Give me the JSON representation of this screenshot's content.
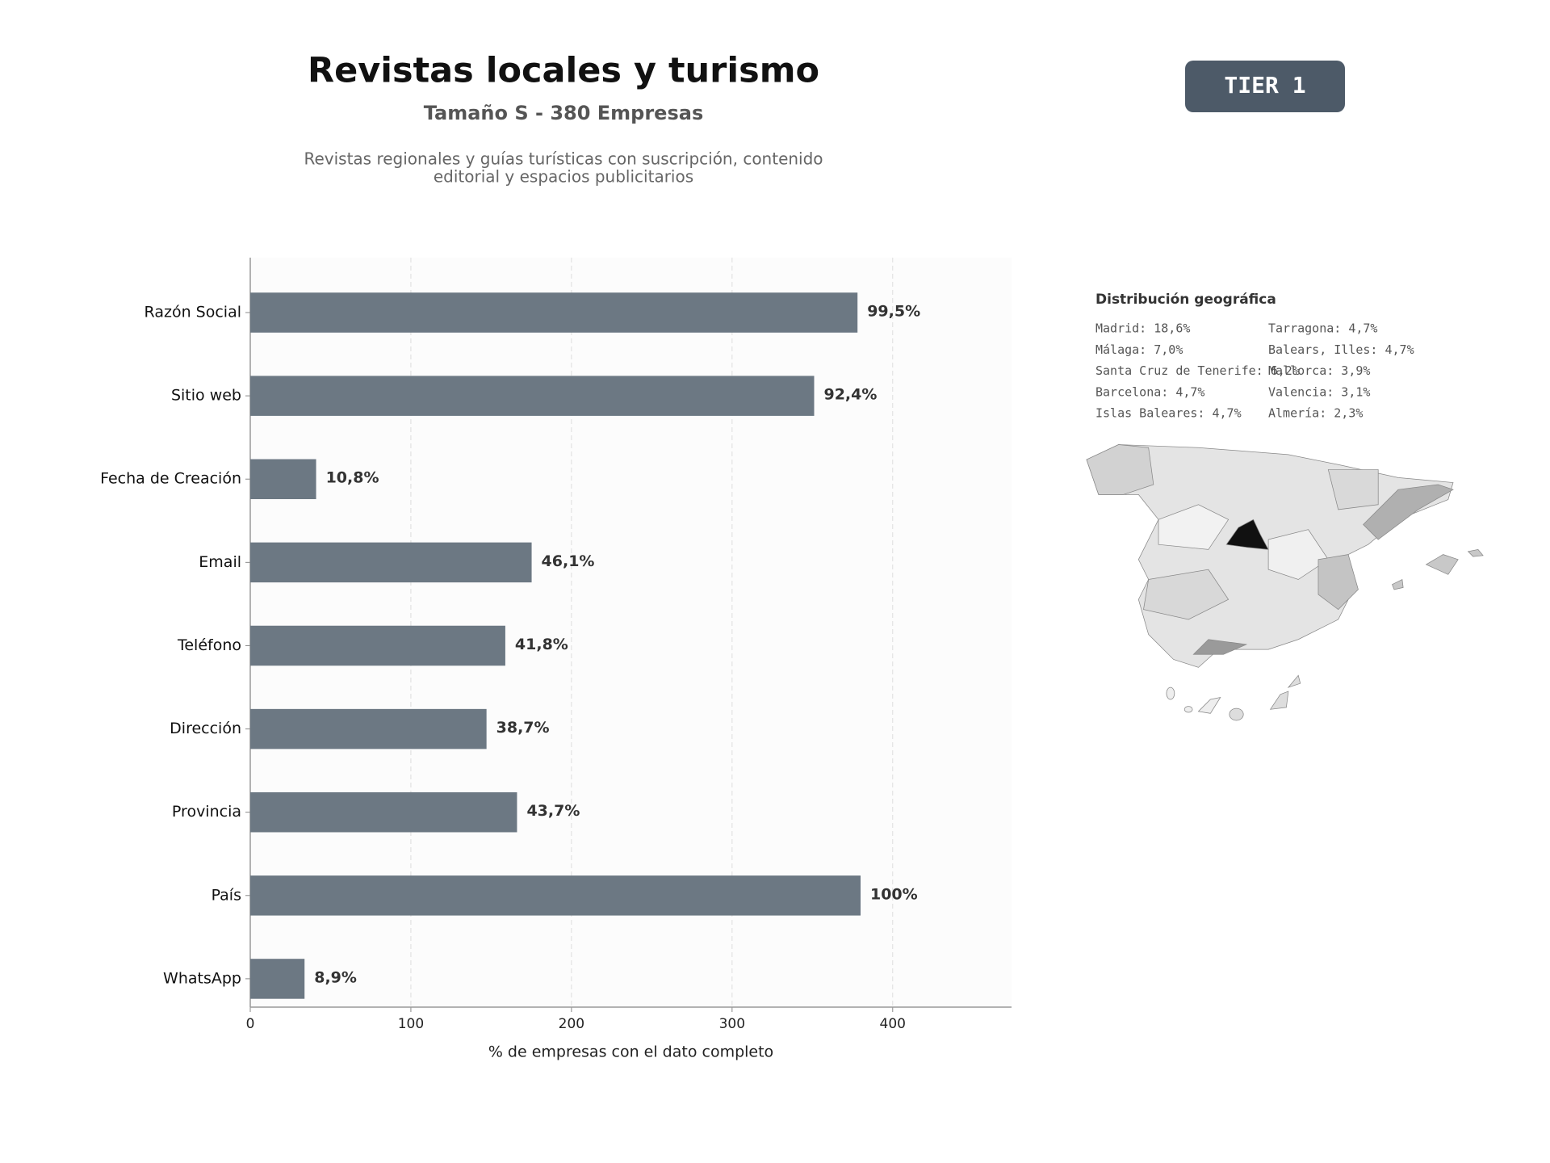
{
  "chart_data": {
    "type": "bar",
    "orientation": "horizontal",
    "title": "Revistas locales y turismo",
    "subtitle": "Tamaño S - 380 Empresas",
    "description": [
      "Revistas regionales y guías turísticas con suscripción, contenido",
      "editorial y espacios publicitarios"
    ],
    "badge": "TIER 1",
    "categories": [
      "Razón Social",
      "Sitio web",
      "Fecha de Creación",
      "Email",
      "Teléfono",
      "Dirección",
      "Provincia",
      "País",
      "WhatsApp"
    ],
    "values": [
      378.1,
      351.1,
      41.0,
      175.2,
      158.8,
      147.1,
      166.1,
      380,
      33.8
    ],
    "value_labels": [
      "99,5%",
      "92,4%",
      "10,8%",
      "46,1%",
      "41,8%",
      "38,7%",
      "43,7%",
      "100%",
      "8,9%"
    ],
    "color": "#6c7883",
    "xlim": [
      0,
      474
    ],
    "xticks": [
      0,
      100,
      200,
      300,
      400
    ],
    "grid": true,
    "xlabel": "% de empresas con el dato completo",
    "geo": {
      "title": "Distribución geográfica",
      "items": [
        "Madrid: 18,6%",
        "Málaga: 7,0%",
        "Santa Cruz de Tenerife: 6,2%",
        "Barcelona: 4,7%",
        "Islas Baleares: 4,7%",
        "Tarragona: 4,7%",
        "Balears, Illes: 4,7%",
        "Mallorca: 3,9%",
        "Valencia: 3,1%",
        "Almería: 2,3%"
      ]
    }
  }
}
